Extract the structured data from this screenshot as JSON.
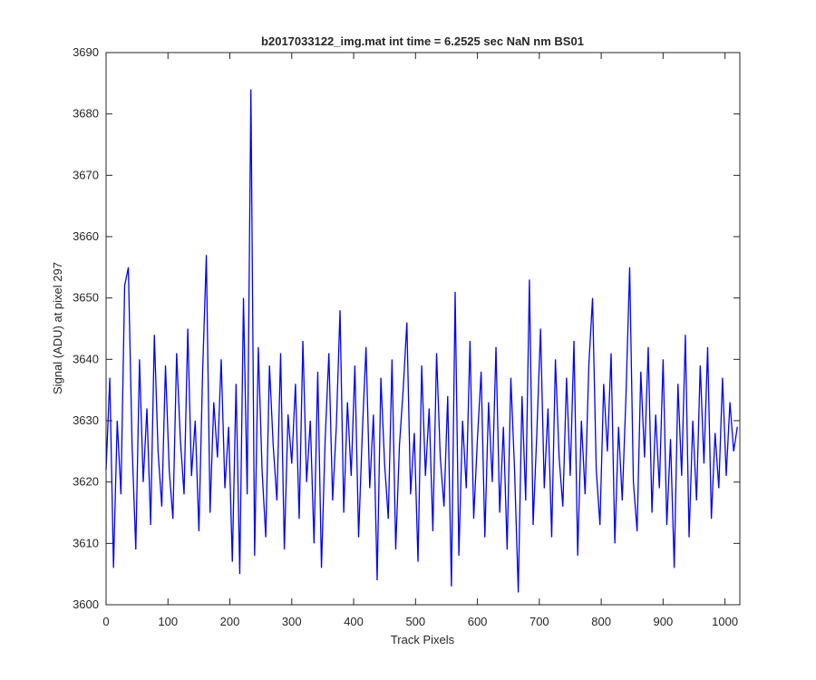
{
  "chart_data": {
    "type": "line",
    "title": "b2017033122_img.mat int time = 6.2525 sec  NaN nm BS01",
    "x_label": "Track Pixels",
    "y_label": "Signal (ADU) at pixel 297",
    "x": [
      0,
      6,
      12,
      18,
      24,
      30,
      36,
      42,
      48,
      54,
      60,
      66,
      72,
      78,
      84,
      90,
      96,
      102,
      108,
      114,
      120,
      126,
      132,
      138,
      144,
      150,
      156,
      162,
      168,
      174,
      180,
      186,
      192,
      198,
      204,
      210,
      216,
      222,
      228,
      234,
      240,
      246,
      252,
      258,
      264,
      270,
      276,
      282,
      288,
      294,
      300,
      306,
      312,
      318,
      324,
      330,
      336,
      342,
      348,
      354,
      360,
      366,
      372,
      378,
      384,
      390,
      396,
      402,
      408,
      414,
      420,
      426,
      432,
      438,
      444,
      450,
      456,
      462,
      468,
      474,
      480,
      486,
      492,
      498,
      504,
      510,
      516,
      522,
      528,
      534,
      540,
      546,
      552,
      558,
      564,
      570,
      576,
      582,
      588,
      594,
      600,
      606,
      612,
      618,
      624,
      630,
      636,
      642,
      648,
      654,
      660,
      666,
      672,
      678,
      684,
      690,
      696,
      702,
      708,
      714,
      720,
      726,
      732,
      738,
      744,
      750,
      756,
      762,
      768,
      774,
      780,
      786,
      792,
      798,
      804,
      810,
      816,
      822,
      828,
      834,
      840,
      846,
      852,
      858,
      864,
      870,
      876,
      882,
      888,
      894,
      900,
      906,
      912,
      918,
      924,
      930,
      936,
      942,
      948,
      954,
      960,
      966,
      972,
      978,
      984,
      990,
      996,
      1002,
      1008,
      1014,
      1020
    ],
    "series": [
      {
        "name": "Signal",
        "color": "#0000ff",
        "values": [
          3622,
          3637,
          3606,
          3630,
          3618,
          3652,
          3655,
          3626,
          3609,
          3640,
          3620,
          3632,
          3613,
          3644,
          3625,
          3616,
          3639,
          3622,
          3614,
          3641,
          3627,
          3618,
          3645,
          3621,
          3630,
          3612,
          3638,
          3657,
          3615,
          3633,
          3624,
          3640,
          3619,
          3629,
          3607,
          3636,
          3605,
          3650,
          3618,
          3684,
          3608,
          3642,
          3622,
          3611,
          3639,
          3626,
          3617,
          3641,
          3609,
          3631,
          3623,
          3636,
          3614,
          3643,
          3620,
          3630,
          3610,
          3638,
          3606,
          3627,
          3641,
          3617,
          3629,
          3648,
          3615,
          3633,
          3621,
          3639,
          3611,
          3628,
          3642,
          3619,
          3631,
          3604,
          3637,
          3623,
          3614,
          3640,
          3609,
          3626,
          3635,
          3646,
          3618,
          3628,
          3607,
          3639,
          3621,
          3632,
          3612,
          3641,
          3624,
          3616,
          3634,
          3603,
          3651,
          3608,
          3630,
          3619,
          3643,
          3614,
          3627,
          3638,
          3611,
          3633,
          3620,
          3642,
          3615,
          3629,
          3609,
          3637,
          3622,
          3602,
          3634,
          3617,
          3653,
          3613,
          3628,
          3645,
          3619,
          3632,
          3611,
          3640,
          3624,
          3616,
          3637,
          3621,
          3643,
          3608,
          3630,
          3618,
          3639,
          3650,
          3622,
          3613,
          3636,
          3625,
          3641,
          3610,
          3629,
          3617,
          3634,
          3655,
          3620,
          3612,
          3638,
          3624,
          3642,
          3615,
          3631,
          3619,
          3640,
          3613,
          3627,
          3606,
          3636,
          3621,
          3644,
          3611,
          3630,
          3617,
          3639,
          3623,
          3642,
          3614,
          3628,
          3619,
          3637,
          3621,
          3633,
          3625,
          3629
        ]
      }
    ],
    "xlim": [
      0,
      1024
    ],
    "ylim": [
      3600,
      3690
    ],
    "xticks": [
      0,
      100,
      200,
      300,
      400,
      500,
      600,
      700,
      800,
      900,
      1000
    ],
    "yticks": [
      3600,
      3610,
      3620,
      3630,
      3640,
      3650,
      3660,
      3670,
      3680,
      3690
    ]
  }
}
